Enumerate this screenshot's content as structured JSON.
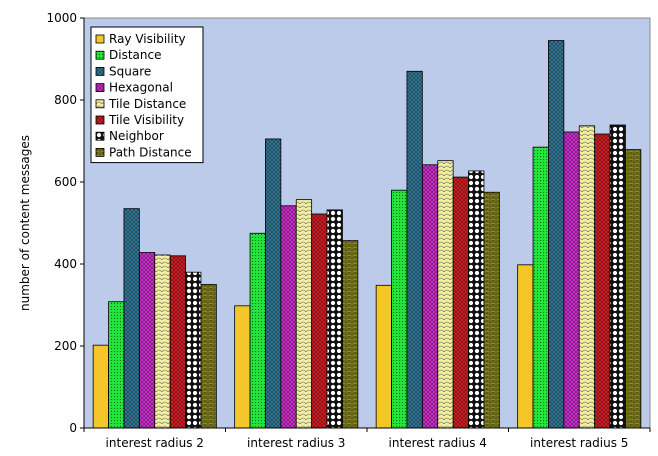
{
  "chart_data": {
    "type": "bar",
    "categories": [
      "interest radius 2",
      "interest radius 3",
      "interest radius 4",
      "interest radius 5"
    ],
    "series": [
      {
        "name": "Ray Visibility",
        "values": [
          202,
          298,
          348,
          398
        ],
        "color": "#f5c62a",
        "pattern": "solid"
      },
      {
        "name": "Distance",
        "values": [
          308,
          475,
          580,
          685
        ],
        "color": "#22e43a",
        "pattern": "dots"
      },
      {
        "name": "Square",
        "values": [
          535,
          705,
          870,
          945
        ],
        "color": "#2f7a9c",
        "pattern": "crosshatch"
      },
      {
        "name": "Hexagonal",
        "values": [
          428,
          542,
          642,
          722
        ],
        "color": "#d62ad6",
        "pattern": "crosshatch"
      },
      {
        "name": "Tile Distance",
        "values": [
          422,
          557,
          652,
          737
        ],
        "color": "#f2eea0",
        "pattern": "scales"
      },
      {
        "name": "Tile Visibility",
        "values": [
          420,
          522,
          612,
          717
        ],
        "color": "#d9181e",
        "pattern": "crosshatch"
      },
      {
        "name": "Neighbor",
        "values": [
          380,
          532,
          627,
          739
        ],
        "color": "#ffffff",
        "pattern": "bigdots"
      },
      {
        "name": "Path Distance",
        "values": [
          350,
          457,
          575,
          679
        ],
        "color": "#8a8a1e",
        "pattern": "bricks"
      }
    ],
    "title": "",
    "xlabel": "",
    "ylabel": "number of content messages",
    "ylim": [
      0,
      1000
    ],
    "yticks": [
      0,
      200,
      400,
      600,
      800,
      1000
    ],
    "grid": false,
    "legend": "top-left",
    "plot_background": "#bccbea"
  }
}
